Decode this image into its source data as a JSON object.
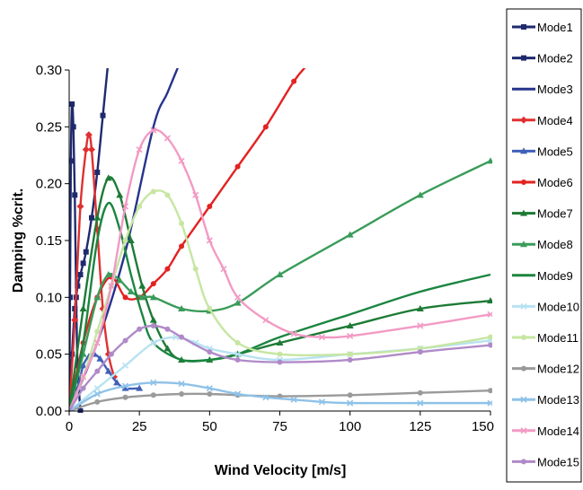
{
  "chart_data": {
    "type": "line",
    "title": "",
    "xlabel": "Wind Velocity [m/s]",
    "ylabel": "Damping %crit.",
    "xlim": [
      0,
      150
    ],
    "ylim": [
      0,
      0.3
    ],
    "xticks": [
      0,
      25,
      50,
      75,
      100,
      125,
      150
    ],
    "xtick_labels": [
      "0",
      "25",
      "50",
      "75",
      "100",
      "125",
      "150"
    ],
    "yticks": [
      0,
      0.05,
      0.1,
      0.15,
      0.2,
      0.25,
      0.3
    ],
    "ytick_labels": [
      "0.00",
      "0.05",
      "0.10",
      "0.15",
      "0.20",
      "0.25",
      "0.30"
    ],
    "grid": false,
    "legend_position": "right",
    "series": [
      {
        "name": "Mode1",
        "color": "#1f2a6e",
        "marker": "square",
        "x": [
          0,
          0.3,
          0.6,
          1.0,
          1.5,
          2.0,
          2.5,
          3.0,
          4.0
        ],
        "y": [
          0,
          0.1,
          0.22,
          0.27,
          0.25,
          0.19,
          0.1,
          0.04,
          0.0
        ]
      },
      {
        "name": "Mode2",
        "color": "#1f2a6e",
        "marker": "square",
        "x": [
          0,
          1,
          2,
          3,
          4,
          5,
          6,
          8,
          10,
          12,
          14
        ],
        "y": [
          0,
          0.05,
          0.09,
          0.11,
          0.12,
          0.13,
          0.14,
          0.17,
          0.21,
          0.26,
          0.31
        ]
      },
      {
        "name": "Mode3",
        "color": "#26338c",
        "marker": "none",
        "x": [
          0,
          10,
          20,
          30,
          35,
          40
        ],
        "y": [
          0,
          0.06,
          0.14,
          0.25,
          0.28,
          0.31
        ]
      },
      {
        "name": "Mode4",
        "color": "#e03030",
        "marker": "diamond",
        "x": [
          0,
          2,
          4,
          6,
          7,
          8,
          10,
          12,
          14,
          16
        ],
        "y": [
          0,
          0.08,
          0.18,
          0.23,
          0.243,
          0.23,
          0.16,
          0.09,
          0.05,
          0.03
        ]
      },
      {
        "name": "Mode5",
        "color": "#4060b8",
        "marker": "triangle",
        "x": [
          0,
          3,
          5,
          7,
          9,
          11,
          14,
          17,
          20,
          25
        ],
        "y": [
          0,
          0.02,
          0.04,
          0.048,
          0.05,
          0.046,
          0.035,
          0.025,
          0.02,
          0.02
        ]
      },
      {
        "name": "Mode6",
        "color": "#e32222",
        "marker": "dot",
        "x": [
          0,
          5,
          10,
          15,
          20,
          25,
          30,
          35,
          40,
          50,
          60,
          70,
          80,
          85
        ],
        "y": [
          0,
          0.06,
          0.1,
          0.118,
          0.1,
          0.1,
          0.112,
          0.125,
          0.145,
          0.18,
          0.215,
          0.25,
          0.29,
          0.305
        ]
      },
      {
        "name": "Mode7",
        "color": "#1d7a35",
        "marker": "triangle",
        "x": [
          0,
          5,
          10,
          14,
          18,
          22,
          26,
          30,
          35,
          40,
          50,
          60,
          75,
          100,
          125,
          150
        ],
        "y": [
          0,
          0.09,
          0.17,
          0.205,
          0.19,
          0.15,
          0.11,
          0.08,
          0.055,
          0.045,
          0.045,
          0.05,
          0.06,
          0.075,
          0.09,
          0.097
        ]
      },
      {
        "name": "Mode8",
        "color": "#3a9c5a",
        "marker": "triangle",
        "x": [
          0,
          5,
          10,
          14,
          18,
          22,
          26,
          30,
          40,
          50,
          60,
          75,
          100,
          125,
          150
        ],
        "y": [
          0,
          0.05,
          0.1,
          0.12,
          0.115,
          0.105,
          0.1,
          0.1,
          0.09,
          0.088,
          0.095,
          0.12,
          0.155,
          0.19,
          0.22
        ]
      },
      {
        "name": "Mode9",
        "color": "#1b8540",
        "marker": "none",
        "x": [
          0,
          5,
          10,
          14,
          18,
          22,
          26,
          30,
          40,
          50,
          60,
          75,
          100,
          125,
          150
        ],
        "y": [
          0,
          0.06,
          0.15,
          0.183,
          0.16,
          0.12,
          0.085,
          0.06,
          0.045,
          0.045,
          0.05,
          0.065,
          0.085,
          0.105,
          0.12
        ]
      },
      {
        "name": "Mode10",
        "color": "#b8e2f2",
        "marker": "x",
        "x": [
          0,
          10,
          20,
          30,
          38,
          45,
          50,
          60,
          75,
          100,
          125,
          150
        ],
        "y": [
          0,
          0.02,
          0.04,
          0.06,
          0.065,
          0.06,
          0.055,
          0.05,
          0.045,
          0.05,
          0.055,
          0.062
        ]
      },
      {
        "name": "Mode11",
        "color": "#c6e6a2",
        "marker": "dot",
        "x": [
          0,
          5,
          10,
          15,
          20,
          25,
          30,
          35,
          40,
          45,
          50,
          60,
          75,
          100,
          125,
          150
        ],
        "y": [
          0,
          0.03,
          0.07,
          0.11,
          0.15,
          0.18,
          0.193,
          0.19,
          0.165,
          0.125,
          0.09,
          0.06,
          0.05,
          0.05,
          0.055,
          0.065
        ]
      },
      {
        "name": "Mode12",
        "color": "#9a9a9a",
        "marker": "dot",
        "x": [
          0,
          10,
          20,
          30,
          40,
          50,
          60,
          75,
          100,
          125,
          150
        ],
        "y": [
          0,
          0.008,
          0.012,
          0.014,
          0.015,
          0.015,
          0.014,
          0.013,
          0.014,
          0.016,
          0.018
        ]
      },
      {
        "name": "Mode13",
        "color": "#8ec2e8",
        "marker": "x",
        "x": [
          0,
          10,
          20,
          30,
          40,
          50,
          60,
          70,
          80,
          90,
          100,
          125,
          150
        ],
        "y": [
          0,
          0.015,
          0.022,
          0.025,
          0.024,
          0.02,
          0.015,
          0.012,
          0.01,
          0.008,
          0.007,
          0.007,
          0.007
        ]
      },
      {
        "name": "Mode14",
        "color": "#f29ac4",
        "marker": "x",
        "x": [
          0,
          5,
          10,
          15,
          20,
          25,
          30,
          35,
          40,
          45,
          50,
          55,
          60,
          70,
          80,
          90,
          100,
          125,
          150
        ],
        "y": [
          0,
          0.03,
          0.06,
          0.11,
          0.18,
          0.23,
          0.247,
          0.24,
          0.22,
          0.19,
          0.15,
          0.125,
          0.1,
          0.08,
          0.068,
          0.065,
          0.066,
          0.075,
          0.085
        ]
      },
      {
        "name": "Mode15",
        "color": "#b08ac8",
        "marker": "dot",
        "x": [
          0,
          5,
          10,
          15,
          20,
          25,
          30,
          35,
          40,
          50,
          60,
          75,
          100,
          125,
          150
        ],
        "y": [
          0,
          0.02,
          0.035,
          0.05,
          0.062,
          0.072,
          0.075,
          0.072,
          0.065,
          0.052,
          0.045,
          0.043,
          0.045,
          0.052,
          0.058
        ]
      }
    ]
  }
}
